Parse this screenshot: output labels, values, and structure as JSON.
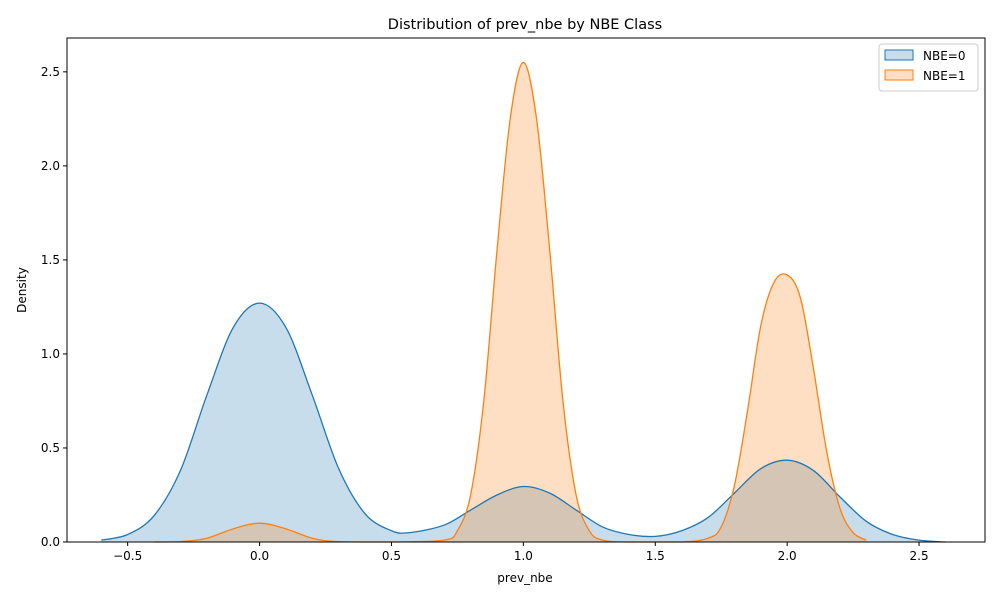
{
  "chart_data": {
    "type": "area",
    "title": "Distribution of prev_nbe by NBE Class",
    "xlabel": "prev_nbe",
    "ylabel": "Density",
    "xlim": [
      -0.73,
      2.75
    ],
    "ylim": [
      0,
      2.68
    ],
    "xticks": [
      -0.5,
      0.0,
      0.5,
      1.0,
      1.5,
      2.0,
      2.5
    ],
    "xtick_labels": [
      "−0.5",
      "0.0",
      "0.5",
      "1.0",
      "1.5",
      "2.0",
      "2.5"
    ],
    "yticks": [
      0.0,
      0.5,
      1.0,
      1.5,
      2.0,
      2.5
    ],
    "ytick_labels": [
      "0.0",
      "0.5",
      "1.0",
      "1.5",
      "2.0",
      "2.5"
    ],
    "grid": false,
    "legend_position": "top-right",
    "series": [
      {
        "name": "NBE=0",
        "color": "#1f77b4",
        "x": [
          -0.6,
          -0.5,
          -0.4,
          -0.3,
          -0.2,
          -0.1,
          0.0,
          0.1,
          0.2,
          0.3,
          0.4,
          0.5,
          0.57,
          0.7,
          0.8,
          0.9,
          1.0,
          1.1,
          1.2,
          1.3,
          1.4,
          1.5,
          1.6,
          1.7,
          1.8,
          1.9,
          2.0,
          2.1,
          2.2,
          2.3,
          2.4,
          2.5,
          2.6
        ],
        "values": [
          0.01,
          0.04,
          0.14,
          0.38,
          0.78,
          1.14,
          1.27,
          1.14,
          0.78,
          0.39,
          0.15,
          0.06,
          0.05,
          0.09,
          0.17,
          0.25,
          0.295,
          0.26,
          0.17,
          0.08,
          0.04,
          0.03,
          0.06,
          0.13,
          0.26,
          0.39,
          0.435,
          0.38,
          0.24,
          0.11,
          0.04,
          0.01,
          0.0
        ]
      },
      {
        "name": "NBE=1",
        "color": "#ff7f0e",
        "x": [
          -0.4,
          -0.3,
          -0.2,
          -0.1,
          0.0,
          0.1,
          0.2,
          0.3,
          0.5,
          0.7,
          0.75,
          0.8,
          0.85,
          0.9,
          0.95,
          1.0,
          1.05,
          1.1,
          1.15,
          1.2,
          1.25,
          1.3,
          1.4,
          1.6,
          1.7,
          1.75,
          1.8,
          1.85,
          1.9,
          1.95,
          2.0,
          2.05,
          2.1,
          2.15,
          2.2,
          2.25,
          2.3
        ],
        "values": [
          0.0,
          0.002,
          0.02,
          0.07,
          0.1,
          0.07,
          0.02,
          0.002,
          0.0,
          0.01,
          0.06,
          0.25,
          0.75,
          1.55,
          2.25,
          2.55,
          2.25,
          1.55,
          0.75,
          0.25,
          0.06,
          0.01,
          0.0,
          0.0,
          0.02,
          0.08,
          0.3,
          0.7,
          1.15,
          1.38,
          1.42,
          1.3,
          0.92,
          0.48,
          0.18,
          0.05,
          0.01
        ]
      }
    ]
  }
}
